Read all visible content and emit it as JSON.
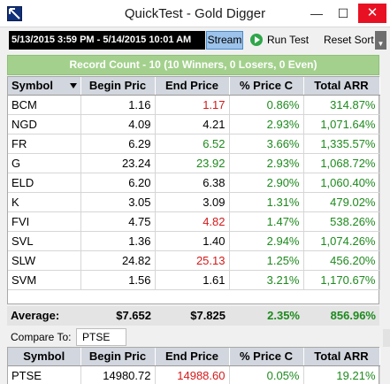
{
  "window": {
    "title": "QuickTest - Gold Digger",
    "minimize_glyph": "—",
    "maximize_glyph": "☐",
    "close_glyph": "✕"
  },
  "toolbar": {
    "date_range": "5/13/2015 3:59 PM - 5/14/2015 10:01 AM",
    "stream_label": "Stream",
    "run_test_label": "Run Test",
    "reset_sort_label": "Reset Sort",
    "overflow_glyph": "▼"
  },
  "summary": {
    "record_count": "Record Count - 10 (10 Winners, 0 Losers, 0 Even)"
  },
  "columns": [
    "Symbol",
    "Begin Pric",
    "End Price",
    "% Price C",
    "Total ARR"
  ],
  "rows": [
    {
      "symbol": "BCM",
      "begin": "1.16",
      "end": "1.17",
      "end_color": "red",
      "pct": "0.86%",
      "arr": "314.87%"
    },
    {
      "symbol": "NGD",
      "begin": "4.09",
      "end": "4.21",
      "end_color": "black",
      "pct": "2.93%",
      "arr": "1,071.64%"
    },
    {
      "symbol": "FR",
      "begin": "6.29",
      "end": "6.52",
      "end_color": "green",
      "pct": "3.66%",
      "arr": "1,335.57%"
    },
    {
      "symbol": "G",
      "begin": "23.24",
      "end": "23.92",
      "end_color": "green",
      "pct": "2.93%",
      "arr": "1,068.72%"
    },
    {
      "symbol": "ELD",
      "begin": "6.20",
      "end": "6.38",
      "end_color": "black",
      "pct": "2.90%",
      "arr": "1,060.40%"
    },
    {
      "symbol": "K",
      "begin": "3.05",
      "end": "3.09",
      "end_color": "black",
      "pct": "1.31%",
      "arr": "479.02%"
    },
    {
      "symbol": "FVI",
      "begin": "4.75",
      "end": "4.82",
      "end_color": "red",
      "pct": "1.47%",
      "arr": "538.26%"
    },
    {
      "symbol": "SVL",
      "begin": "1.36",
      "end": "1.40",
      "end_color": "black",
      "pct": "2.94%",
      "arr": "1,074.26%"
    },
    {
      "symbol": "SLW",
      "begin": "24.82",
      "end": "25.13",
      "end_color": "red",
      "pct": "1.25%",
      "arr": "456.20%"
    },
    {
      "symbol": "SVM",
      "begin": "1.56",
      "end": "1.61",
      "end_color": "black",
      "pct": "3.21%",
      "arr": "1,170.67%"
    }
  ],
  "average": {
    "label": "Average:",
    "begin": "$7.652",
    "end": "$7.825",
    "pct": "2.35%",
    "arr": "856.96%"
  },
  "compare": {
    "label": "Compare To:",
    "value": "PTSE"
  },
  "benchmark_columns": [
    "Symbol",
    "Begin Pric",
    "End Price",
    "% Price C",
    "Total ARR"
  ],
  "benchmark": {
    "symbol": "PTSE",
    "begin": "14980.72",
    "end": "14988.60",
    "end_color": "red",
    "pct": "0.05%",
    "arr": "19.21%"
  },
  "colors": {
    "positive": "#1d8a1d",
    "negative": "#d41919",
    "record_bar": "#a3d18d",
    "header": "#d2d6de",
    "close_button": "#e81123"
  }
}
